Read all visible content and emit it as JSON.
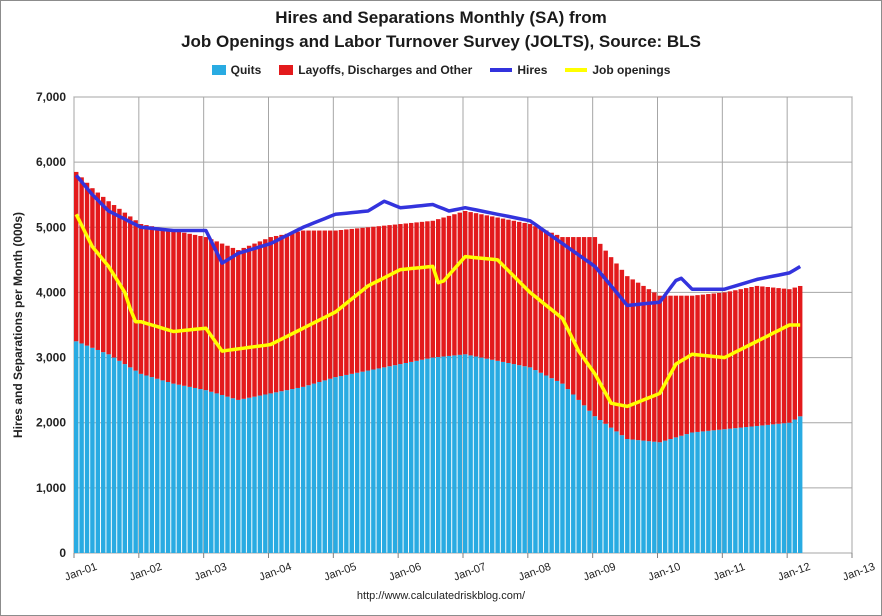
{
  "chart_data": {
    "type": "bar",
    "title_line1": "Hires and Separations Monthly (SA) from",
    "title_line2": "Job Openings and Labor Turnover Survey (JOLTS), Source: BLS",
    "ylabel": "Hires and Separations per Month (000s)",
    "ylim": [
      0,
      7000
    ],
    "yticks": [
      0,
      1000,
      2000,
      3000,
      4000,
      5000,
      6000,
      7000
    ],
    "ytick_labels": [
      "0",
      "1,000",
      "2,000",
      "3,000",
      "4,000",
      "5,000",
      "6,000",
      "7,000"
    ],
    "xtick_labels": [
      "Jan-01",
      "Jan-02",
      "Jan-03",
      "Jan-04",
      "Jan-05",
      "Jan-06",
      "Jan-07",
      "Jan-08",
      "Jan-09",
      "Jan-10",
      "Jan-11",
      "Jan-12",
      "Jan-13"
    ],
    "x_range_years": [
      2001,
      2013
    ],
    "grid": true,
    "legend_position": "top",
    "source": "http://www.calculatedriskblog.com/",
    "colors": {
      "quits": "#29abe2",
      "layoffs": "#e31a1c",
      "hires": "#3333dd",
      "openings": "#ffff00"
    },
    "series": [
      {
        "name": "Quits",
        "kind": "stacked-bar",
        "color": "#29abe2",
        "anchors": [
          [
            2001.0,
            3250
          ],
          [
            2001.5,
            3050
          ],
          [
            2002.0,
            2750
          ],
          [
            2002.5,
            2600
          ],
          [
            2003.0,
            2500
          ],
          [
            2003.5,
            2350
          ],
          [
            2004.0,
            2450
          ],
          [
            2004.5,
            2550
          ],
          [
            2005.0,
            2700
          ],
          [
            2005.5,
            2800
          ],
          [
            2006.0,
            2900
          ],
          [
            2006.5,
            3000
          ],
          [
            2007.0,
            3050
          ],
          [
            2007.5,
            2950
          ],
          [
            2008.0,
            2850
          ],
          [
            2008.5,
            2600
          ],
          [
            2009.0,
            2100
          ],
          [
            2009.5,
            1750
          ],
          [
            2010.0,
            1700
          ],
          [
            2010.5,
            1850
          ],
          [
            2011.0,
            1900
          ],
          [
            2011.5,
            1950
          ],
          [
            2012.0,
            2000
          ],
          [
            2012.17,
            2100
          ]
        ]
      },
      {
        "name": "Layoffs, Discharges and Other",
        "kind": "stacked-bar",
        "color": "#e31a1c",
        "anchors": [
          [
            2001.0,
            5850
          ],
          [
            2001.25,
            5600
          ],
          [
            2001.5,
            5400
          ],
          [
            2002.0,
            5050
          ],
          [
            2002.5,
            4950
          ],
          [
            2003.0,
            4850
          ],
          [
            2003.5,
            4650
          ],
          [
            2004.0,
            4850
          ],
          [
            2004.5,
            4950
          ],
          [
            2005.0,
            4950
          ],
          [
            2005.5,
            5000
          ],
          [
            2006.0,
            5050
          ],
          [
            2006.5,
            5100
          ],
          [
            2007.0,
            5250
          ],
          [
            2007.5,
            5150
          ],
          [
            2008.0,
            5050
          ],
          [
            2008.5,
            4850
          ],
          [
            2009.0,
            4850
          ],
          [
            2009.2,
            4600
          ],
          [
            2009.5,
            4250
          ],
          [
            2010.0,
            3950
          ],
          [
            2010.5,
            3950
          ],
          [
            2011.0,
            4000
          ],
          [
            2011.5,
            4100
          ],
          [
            2012.0,
            4050
          ],
          [
            2012.17,
            4100
          ]
        ]
      },
      {
        "name": "Hires",
        "kind": "line",
        "color": "#3333dd",
        "anchors": [
          [
            2001.0,
            5800
          ],
          [
            2001.25,
            5500
          ],
          [
            2001.5,
            5250
          ],
          [
            2002.0,
            5000
          ],
          [
            2002.5,
            4950
          ],
          [
            2003.0,
            4950
          ],
          [
            2003.25,
            4450
          ],
          [
            2003.5,
            4600
          ],
          [
            2004.0,
            4750
          ],
          [
            2004.5,
            5000
          ],
          [
            2005.0,
            5200
          ],
          [
            2005.5,
            5250
          ],
          [
            2005.75,
            5400
          ],
          [
            2006.0,
            5300
          ],
          [
            2006.5,
            5350
          ],
          [
            2006.75,
            5250
          ],
          [
            2007.0,
            5300
          ],
          [
            2007.5,
            5200
          ],
          [
            2008.0,
            5100
          ],
          [
            2008.5,
            4750
          ],
          [
            2009.0,
            4400
          ],
          [
            2009.5,
            3800
          ],
          [
            2010.0,
            3850
          ],
          [
            2010.3,
            4250
          ],
          [
            2010.5,
            4050
          ],
          [
            2011.0,
            4050
          ],
          [
            2011.5,
            4200
          ],
          [
            2012.0,
            4300
          ],
          [
            2012.17,
            4400
          ]
        ]
      },
      {
        "name": "Job openings",
        "kind": "line",
        "color": "#ffff00",
        "anchors": [
          [
            2001.0,
            5200
          ],
          [
            2001.25,
            4700
          ],
          [
            2001.5,
            4400
          ],
          [
            2001.75,
            4000
          ],
          [
            2001.9,
            3550
          ],
          [
            2002.0,
            3550
          ],
          [
            2002.5,
            3400
          ],
          [
            2003.0,
            3450
          ],
          [
            2003.25,
            3100
          ],
          [
            2004.0,
            3200
          ],
          [
            2004.5,
            3450
          ],
          [
            2005.0,
            3700
          ],
          [
            2005.5,
            4100
          ],
          [
            2006.0,
            4350
          ],
          [
            2006.5,
            4400
          ],
          [
            2006.6,
            4100
          ],
          [
            2007.0,
            4550
          ],
          [
            2007.5,
            4500
          ],
          [
            2008.0,
            4000
          ],
          [
            2008.5,
            3600
          ],
          [
            2008.75,
            3100
          ],
          [
            2009.0,
            2750
          ],
          [
            2009.25,
            2300
          ],
          [
            2009.5,
            2250
          ],
          [
            2010.0,
            2450
          ],
          [
            2010.25,
            2900
          ],
          [
            2010.5,
            3050
          ],
          [
            2011.0,
            3000
          ],
          [
            2011.5,
            3250
          ],
          [
            2012.0,
            3500
          ],
          [
            2012.17,
            3500
          ]
        ]
      }
    ]
  }
}
